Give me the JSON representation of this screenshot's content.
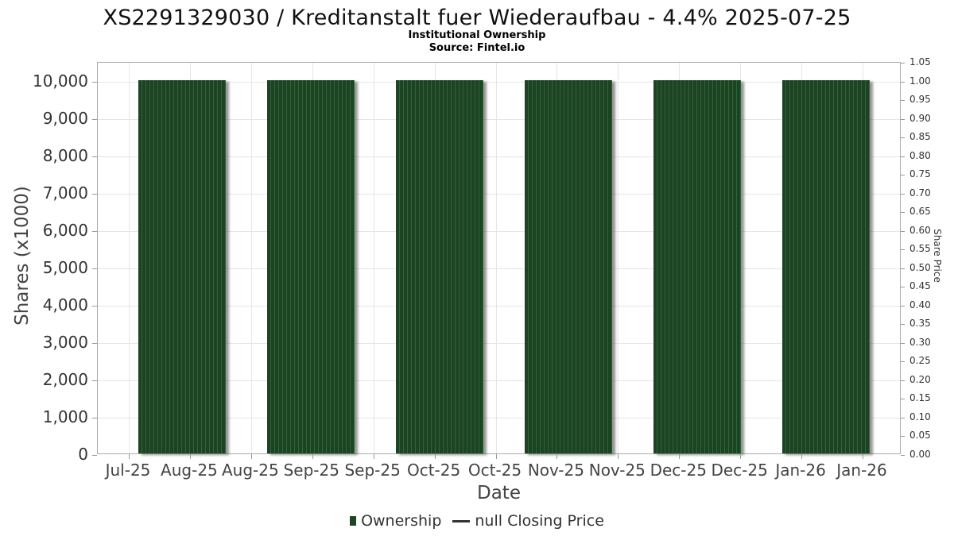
{
  "chart_data": {
    "type": "bar",
    "title": "XS2291329030 / Kreditanstalt fuer Wiederaufbau - 4.4% 2025-07-25",
    "subtitle": "Institutional Ownership",
    "source": "Source: Fintel.io",
    "xlabel": "Date",
    "ylabel_left": "Shares (x1000)",
    "ylabel_right": "Share Price",
    "x_tick_labels": [
      "Jul-25",
      "Aug-25",
      "Aug-25",
      "Sep-25",
      "Sep-25",
      "Oct-25",
      "Oct-25",
      "Nov-25",
      "Nov-25",
      "Dec-25",
      "Dec-25",
      "Jan-26",
      "Jan-26"
    ],
    "y_left_ticks": [
      0,
      1000,
      2000,
      3000,
      4000,
      5000,
      6000,
      7000,
      8000,
      9000,
      10000
    ],
    "y_left_tick_labels": [
      "0",
      "1,000",
      "2,000",
      "3,000",
      "4,000",
      "5,000",
      "6,000",
      "7,000",
      "8,000",
      "9,000",
      "10,000"
    ],
    "y_left_max": 10500,
    "y_right_ticks": [
      0.0,
      0.05,
      0.1,
      0.15,
      0.2,
      0.25,
      0.3,
      0.35,
      0.4,
      0.45,
      0.5,
      0.55,
      0.6,
      0.65,
      0.7,
      0.75,
      0.8,
      0.85,
      0.9,
      0.95,
      1.0,
      1.05
    ],
    "y_right_max": 1.05,
    "grid": true,
    "legend_position": "bottom",
    "series": [
      {
        "name": "Ownership",
        "type": "bar",
        "color": "#1c4322",
        "categories": [
          "Jul-25 to Aug-25",
          "Aug-25 to Sep-25",
          "Sep-25 to Oct-25",
          "Oct-25 to Nov-25",
          "Nov-25 to Dec-25",
          "Dec-25 to Jan-26"
        ],
        "values": [
          10000,
          10000,
          10000,
          10000,
          10000,
          10000
        ]
      },
      {
        "name": "null Closing Price",
        "type": "line",
        "color": "#333333",
        "values": []
      }
    ]
  },
  "legend": {
    "items": [
      {
        "label": "Ownership",
        "marker": "square",
        "color": "#1d4423"
      },
      {
        "label": "null Closing Price",
        "marker": "line",
        "color": "#333333"
      }
    ]
  }
}
